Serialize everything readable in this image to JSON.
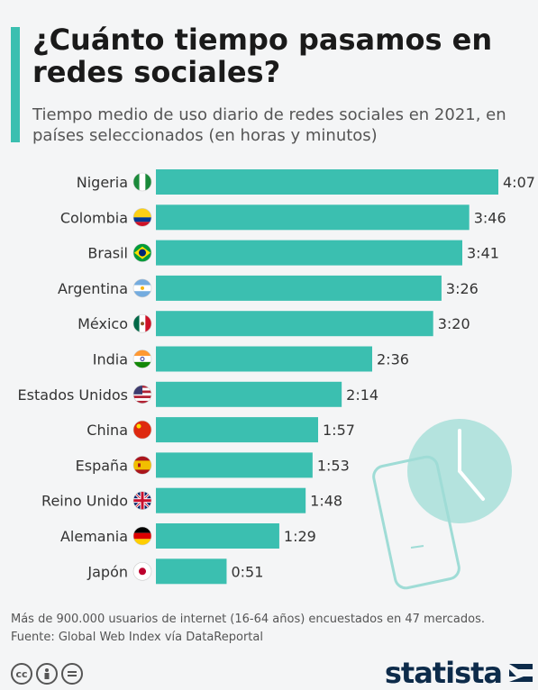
{
  "header": {
    "title": "¿Cuánto tiempo pasamos en redes sociales?",
    "subtitle": "Tiempo medio de uso diario de redes sociales en 2021, en países seleccionados (en horas y minutos)"
  },
  "colors": {
    "accent": "#3bbfb0",
    "bar": "#3bbfb0",
    "brand": "#0d2b4a"
  },
  "chart_data": {
    "type": "bar",
    "orientation": "horizontal",
    "title": "¿Cuánto tiempo pasamos en redes sociales?",
    "subtitle": "Tiempo medio de uso diario de redes sociales en 2021, en países seleccionados (en horas y minutos)",
    "categories": [
      "Nigeria",
      "Colombia",
      "Brasil",
      "Argentina",
      "México",
      "India",
      "Estados Unidos",
      "China",
      "España",
      "Reino Unido",
      "Alemania",
      "Japón"
    ],
    "values": [
      247,
      226,
      221,
      206,
      200,
      156,
      134,
      117,
      113,
      108,
      89,
      51
    ],
    "value_unit": "minutes",
    "labels": [
      "4:07",
      "3:46",
      "3:41",
      "3:26",
      "3:20",
      "2:36",
      "2:14",
      "1:57",
      "1:53",
      "1:48",
      "1:29",
      "0:51"
    ],
    "flag_icons": [
      "nigeria-flag-icon",
      "colombia-flag-icon",
      "brazil-flag-icon",
      "argentina-flag-icon",
      "mexico-flag-icon",
      "india-flag-icon",
      "usa-flag-icon",
      "china-flag-icon",
      "spain-flag-icon",
      "uk-flag-icon",
      "germany-flag-icon",
      "japan-flag-icon"
    ],
    "xlim": [
      0,
      247
    ],
    "grid": false,
    "legend": "none"
  },
  "footer": {
    "note": "Más de 900.000 usuarios de internet (16-64 años) encuestados en 47 mercados.",
    "source": "Fuente: Global Web Index vía DataReportal",
    "brand": "statista",
    "license_icons": [
      "cc-icon",
      "attribution-icon",
      "no-derivatives-icon"
    ]
  }
}
